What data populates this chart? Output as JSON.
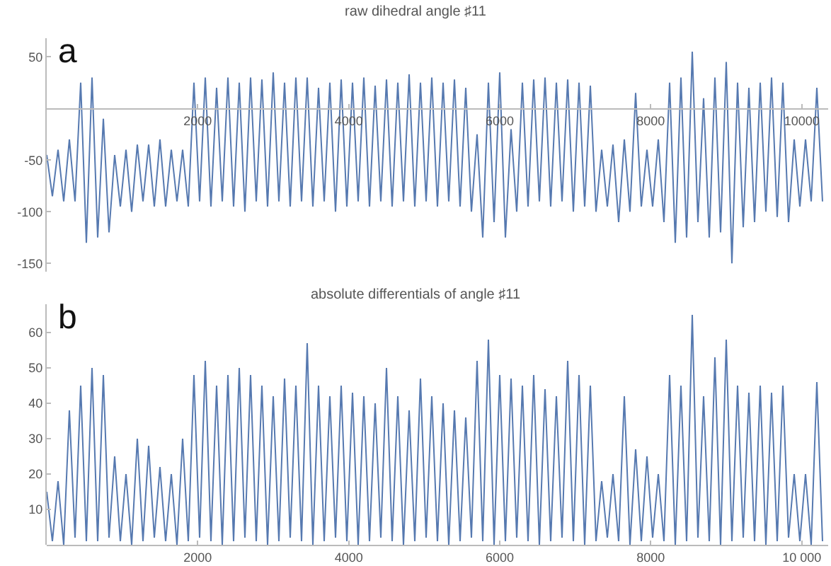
{
  "chart_data": [
    {
      "type": "line",
      "title": "raw dihedral angle ♯11",
      "annotations": [
        "a"
      ],
      "xlim": [
        0,
        10350
      ],
      "ylim": [
        -158,
        68
      ],
      "xticks": [
        2000,
        4000,
        6000,
        8000,
        10000
      ],
      "yticks": [
        -150,
        -100,
        -50,
        50
      ],
      "series": [
        {
          "color": "#5679b0",
          "x": [
            0,
            75,
            150,
            225,
            300,
            375,
            450,
            525,
            600,
            675,
            750,
            825,
            900,
            975,
            1050,
            1125,
            1200,
            1275,
            1350,
            1425,
            1500,
            1575,
            1650,
            1725,
            1800,
            1875,
            1950,
            2025,
            2100,
            2175,
            2250,
            2325,
            2400,
            2475,
            2550,
            2625,
            2700,
            2775,
            2850,
            2925,
            3000,
            3075,
            3150,
            3225,
            3300,
            3375,
            3450,
            3525,
            3600,
            3675,
            3750,
            3825,
            3900,
            3975,
            4050,
            4125,
            4200,
            4275,
            4350,
            4425,
            4500,
            4575,
            4650,
            4725,
            4800,
            4875,
            4950,
            5025,
            5100,
            5175,
            5250,
            5325,
            5400,
            5475,
            5550,
            5625,
            5700,
            5775,
            5850,
            5925,
            6000,
            6075,
            6150,
            6225,
            6300,
            6375,
            6450,
            6525,
            6600,
            6675,
            6750,
            6825,
            6900,
            6975,
            7050,
            7125,
            7200,
            7275,
            7350,
            7425,
            7500,
            7575,
            7650,
            7725,
            7800,
            7875,
            7950,
            8025,
            8100,
            8175,
            8250,
            8325,
            8400,
            8475,
            8550,
            8625,
            8700,
            8775,
            8850,
            8925,
            9000,
            9075,
            9150,
            9225,
            9300,
            9375,
            9450,
            9525,
            9600,
            9675,
            9750,
            9825,
            9900,
            9975,
            10050,
            10125,
            10200,
            10275
          ],
          "values": [
            -45,
            -85,
            -40,
            -90,
            -30,
            -90,
            25,
            -130,
            30,
            -125,
            -10,
            -120,
            -45,
            -95,
            -40,
            -100,
            -35,
            -90,
            -35,
            -95,
            -30,
            -95,
            -40,
            -90,
            -40,
            -95,
            25,
            -90,
            30,
            -95,
            20,
            -90,
            30,
            -95,
            25,
            -100,
            30,
            -90,
            28,
            -95,
            35,
            -90,
            25,
            -95,
            30,
            -90,
            30,
            -95,
            20,
            -90,
            25,
            -100,
            28,
            -95,
            25,
            -90,
            30,
            -95,
            22,
            -90,
            28,
            -95,
            25,
            -90,
            33,
            -95,
            25,
            -90,
            30,
            -95,
            25,
            -90,
            28,
            -95,
            20,
            -100,
            -25,
            -125,
            25,
            -110,
            35,
            -125,
            -20,
            -100,
            25,
            -95,
            28,
            -90,
            30,
            -95,
            25,
            -90,
            28,
            -100,
            25,
            -95,
            22,
            -100,
            -40,
            -95,
            -35,
            -110,
            -30,
            -100,
            15,
            -95,
            -40,
            -95,
            -30,
            -110,
            25,
            -130,
            30,
            -125,
            55,
            -110,
            10,
            -125,
            30,
            -120,
            45,
            -150,
            25,
            -115,
            20,
            -110,
            25,
            -100,
            30,
            -105,
            25,
            -110,
            -30,
            -95,
            -30,
            -90,
            20,
            -90
          ]
        }
      ]
    },
    {
      "type": "line",
      "title": "absolute differentials of angle ♯11",
      "annotations": [
        "b"
      ],
      "xlim": [
        0,
        10350
      ],
      "ylim": [
        0,
        68
      ],
      "xticks": [
        2000,
        4000,
        6000,
        8000,
        {
          "value": 10000,
          "label": "10 000"
        }
      ],
      "yticks": [
        10,
        20,
        30,
        40,
        50,
        60
      ],
      "series": [
        {
          "color": "#5679b0",
          "x": [
            0,
            75,
            150,
            225,
            300,
            375,
            450,
            525,
            600,
            675,
            750,
            825,
            900,
            975,
            1050,
            1125,
            1200,
            1275,
            1350,
            1425,
            1500,
            1575,
            1650,
            1725,
            1800,
            1875,
            1950,
            2025,
            2100,
            2175,
            2250,
            2325,
            2400,
            2475,
            2550,
            2625,
            2700,
            2775,
            2850,
            2925,
            3000,
            3075,
            3150,
            3225,
            3300,
            3375,
            3450,
            3525,
            3600,
            3675,
            3750,
            3825,
            3900,
            3975,
            4050,
            4125,
            4200,
            4275,
            4350,
            4425,
            4500,
            4575,
            4650,
            4725,
            4800,
            4875,
            4950,
            5025,
            5100,
            5175,
            5250,
            5325,
            5400,
            5475,
            5550,
            5625,
            5700,
            5775,
            5850,
            5925,
            6000,
            6075,
            6150,
            6225,
            6300,
            6375,
            6450,
            6525,
            6600,
            6675,
            6750,
            6825,
            6900,
            6975,
            7050,
            7125,
            7200,
            7275,
            7350,
            7425,
            7500,
            7575,
            7650,
            7725,
            7800,
            7875,
            7950,
            8025,
            8100,
            8175,
            8250,
            8325,
            8400,
            8475,
            8550,
            8625,
            8700,
            8775,
            8850,
            8925,
            9000,
            9075,
            9150,
            9225,
            9300,
            9375,
            9450,
            9525,
            9600,
            9675,
            9750,
            9825,
            9900,
            9975,
            10050,
            10125,
            10200,
            10275
          ],
          "values": [
            15,
            1,
            18,
            0,
            38,
            2,
            45,
            1,
            50,
            1,
            48,
            2,
            25,
            1,
            20,
            0,
            30,
            1,
            28,
            2,
            22,
            1,
            20,
            0,
            30,
            1,
            48,
            2,
            52,
            1,
            45,
            0,
            48,
            1,
            50,
            2,
            48,
            1,
            45,
            0,
            42,
            1,
            47,
            2,
            45,
            1,
            57,
            0,
            45,
            1,
            42,
            2,
            45,
            1,
            43,
            0,
            42,
            1,
            40,
            2,
            50,
            1,
            42,
            0,
            38,
            1,
            47,
            2,
            42,
            1,
            40,
            0,
            38,
            1,
            36,
            2,
            52,
            1,
            58,
            0,
            48,
            1,
            47,
            2,
            45,
            1,
            48,
            0,
            44,
            1,
            42,
            2,
            52,
            1,
            48,
            0,
            45,
            1,
            18,
            2,
            20,
            1,
            42,
            0,
            27,
            1,
            25,
            2,
            20,
            1,
            48,
            0,
            45,
            1,
            65,
            2,
            42,
            1,
            53,
            0,
            58,
            1,
            45,
            2,
            43,
            1,
            45,
            0,
            43,
            1,
            45,
            2,
            20,
            1,
            20,
            0,
            46,
            1
          ]
        }
      ]
    }
  ]
}
